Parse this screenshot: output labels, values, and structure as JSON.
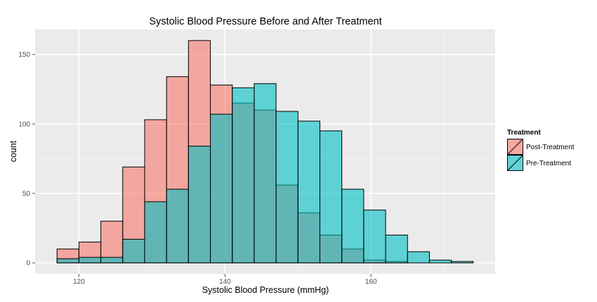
{
  "chart_data": {
    "type": "histogram",
    "title": "Systolic Blood Pressure Before and After Treatment",
    "xlabel": "Systolic Blood Pressure (mmHg)",
    "ylabel": "count",
    "xlim": [
      114,
      177
    ],
    "ylim": [
      -8,
      168
    ],
    "x_ticks": [
      120,
      140,
      160
    ],
    "y_ticks": [
      0,
      50,
      100,
      150
    ],
    "bin_width": 3,
    "bin_edges": [
      117,
      120,
      123,
      126,
      129,
      132,
      135,
      138,
      141,
      144,
      147,
      150,
      153,
      156,
      159,
      162,
      165,
      168,
      171,
      174
    ],
    "grid": true,
    "legend": {
      "title": "Treatment",
      "position": "right"
    },
    "series": [
      {
        "name": "Post-Treatment",
        "color": "#f8766d",
        "values": [
          10,
          15,
          30,
          69,
          103,
          134,
          160,
          128,
          115,
          110,
          56,
          36,
          20,
          10,
          2,
          1,
          0,
          0,
          0
        ]
      },
      {
        "name": "Pre-Treatment",
        "color": "#00bfc4",
        "values": [
          3,
          4,
          4,
          17,
          44,
          53,
          84,
          107,
          126,
          129,
          109,
          102,
          95,
          53,
          38,
          20,
          8,
          2,
          1
        ]
      }
    ]
  }
}
